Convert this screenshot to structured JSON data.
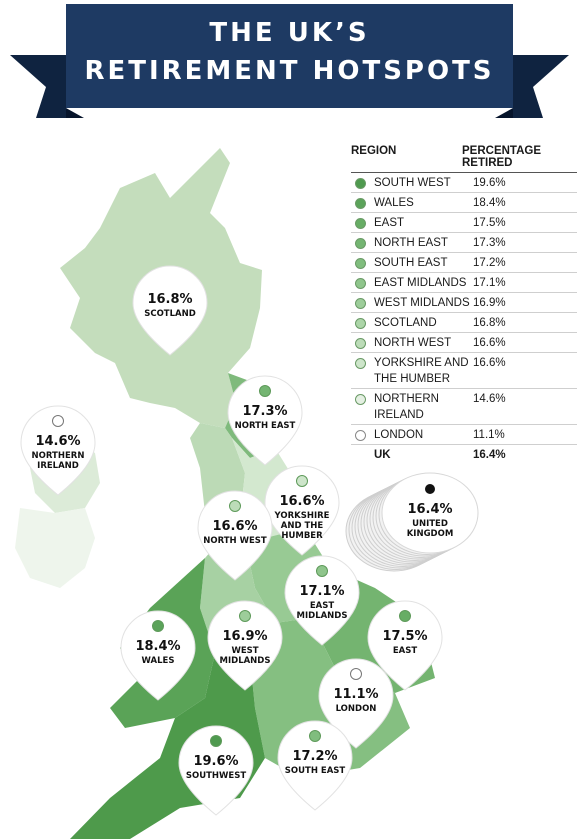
{
  "title": {
    "line1": "THE UK’S",
    "line2": "RETIREMENT HOTSPOTS"
  },
  "colors": {
    "banner": "#1e3a63",
    "banner_dark": "#0f2340",
    "land_base": "#c8dfc0"
  },
  "legend": {
    "header_region": "REGION",
    "header_pct_1": "PERCENTAGE",
    "header_pct_2": "RETIRED"
  },
  "chart_data": {
    "type": "table",
    "title": "THE UK’S RETIREMENT HOTSPOTS",
    "columns": [
      "REGION",
      "PERCENTAGE RETIRED"
    ],
    "rows": [
      {
        "region": "SOUTH WEST",
        "value": 19.6,
        "label": "19.6%",
        "color": "#4f9a4f"
      },
      {
        "region": "WALES",
        "value": 18.4,
        "label": "18.4%",
        "color": "#5ba35a"
      },
      {
        "region": "EAST",
        "value": 17.5,
        "label": "17.5%",
        "color": "#67ad65"
      },
      {
        "region": "NORTH EAST",
        "value": 17.3,
        "label": "17.3%",
        "color": "#74b572"
      },
      {
        "region": "SOUTH EAST",
        "value": 17.2,
        "label": "17.2%",
        "color": "#80bd7e"
      },
      {
        "region": "EAST MIDLANDS",
        "value": 17.1,
        "label": "17.1%",
        "color": "#8fc58c"
      },
      {
        "region": "WEST MIDLANDS",
        "value": 16.9,
        "label": "16.9%",
        "color": "#9dcd9a"
      },
      {
        "region": "SCOTLAND",
        "value": 16.8,
        "label": "16.8%",
        "color": "#acd5a8"
      },
      {
        "region": "NORTH WEST",
        "value": 16.6,
        "label": "16.6%",
        "color": "#bcdcb8"
      },
      {
        "region": "YORKSHIRE AND THE HUMBER",
        "value": 16.6,
        "label": "16.6%",
        "color": "#cde5ca"
      },
      {
        "region": "NORTHERN IRELAND",
        "value": 14.6,
        "label": "14.6%",
        "color": "#e4efe2"
      },
      {
        "region": "LONDON",
        "value": 11.1,
        "label": "11.1%",
        "color": "#ffffff"
      }
    ],
    "total": {
      "region": "UK",
      "value": 16.4,
      "label": "16.4%"
    },
    "map_pins": [
      {
        "pct": "16.8%",
        "name1": "SCOTLAND",
        "name2": "",
        "name3": "",
        "dot": ""
      },
      {
        "pct": "17.3%",
        "name1": "NORTH EAST",
        "name2": "",
        "name3": "",
        "dot": "#74b572"
      },
      {
        "pct": "14.6%",
        "name1": "NORTHERN",
        "name2": "IRELAND",
        "name3": "",
        "dot": "#ffffff"
      },
      {
        "pct": "16.6%",
        "name1": "YORKSHIRE",
        "name2": "AND THE",
        "name3": "HUMBER",
        "dot": "#cde5ca"
      },
      {
        "pct": "16.6%",
        "name1": "NORTH WEST",
        "name2": "",
        "name3": "",
        "dot": "#bcdcb8"
      },
      {
        "pct": "17.1%",
        "name1": "EAST",
        "name2": "MIDLANDS",
        "name3": "",
        "dot": "#8fc58c"
      },
      {
        "pct": "18.4%",
        "name1": "WALES",
        "name2": "",
        "name3": "",
        "dot": "#5ba35a"
      },
      {
        "pct": "16.9%",
        "name1": "WEST",
        "name2": "MIDLANDS",
        "name3": "",
        "dot": "#9dcd9a"
      },
      {
        "pct": "17.5%",
        "name1": "EAST",
        "name2": "",
        "name3": "",
        "dot": "#67ad65"
      },
      {
        "pct": "11.1%",
        "name1": "LONDON",
        "name2": "",
        "name3": "",
        "dot": "#ffffff"
      },
      {
        "pct": "19.6%",
        "name1": "SOUTHWEST",
        "name2": "",
        "name3": "",
        "dot": "#4f9a4f"
      },
      {
        "pct": "17.2%",
        "name1": "SOUTH EAST",
        "name2": "",
        "name3": "",
        "dot": "#80bd7e"
      }
    ],
    "uk_badge": {
      "pct": "16.4%",
      "name1": "UNITED",
      "name2": "KINGDOM",
      "dot": "#111111"
    }
  }
}
